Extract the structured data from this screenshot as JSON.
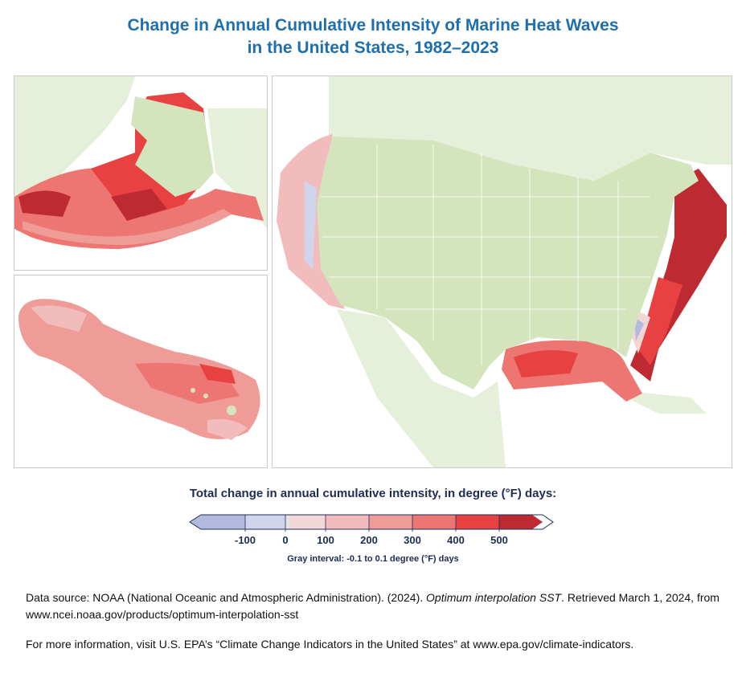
{
  "title": {
    "line1": "Change in Annual Cumulative Intensity of Marine Heat Waves",
    "line2": "in the United States, 1982–2023"
  },
  "panels": {
    "alaska": "Alaska inset map",
    "hawaii": "Hawaii inset map",
    "contiguous": "Contiguous United States map"
  },
  "colors": {
    "title": "#1f6fae",
    "us_land": "#d4e5be",
    "other_land": "#e6efd9",
    "ocean": "#ffffff"
  },
  "legend": {
    "title": "Total change in annual cumulative intensity, in degree (°F) days:",
    "ticks": [
      "-100",
      "0",
      "100",
      "200",
      "300",
      "400",
      "500"
    ],
    "bins": [
      {
        "range": "< -100",
        "color": "#b3bade"
      },
      {
        "range": "-100 to 0",
        "color": "#d0d5ec"
      },
      {
        "range": "gray",
        "color": "#e3e3e3"
      },
      {
        "range": "0 to 100",
        "color": "#f3d6d6"
      },
      {
        "range": "100 to 200",
        "color": "#f2bcbc"
      },
      {
        "range": "200 to 300",
        "color": "#ef9c99"
      },
      {
        "range": "300 to 400",
        "color": "#ed7672"
      },
      {
        "range": "400 to 500",
        "color": "#e84141"
      },
      {
        "range": "> 500",
        "color": "#be2a32"
      }
    ],
    "gray_note": "Gray interval: -0.1 to 0.1 degree (°F) days"
  },
  "source": {
    "prefix": "Data source: NOAA (National Oceanic and Atmospheric Administration). (2024). ",
    "italic": "Optimum interpolation SST",
    "suffix": ". Retrieved March 1, 2024, from www.ncei.noaa.gov/products/optimum-interpolation-sst",
    "more_info": "For more information, visit U.S. EPA’s “Climate Change Indicators in the United States” at www.epa.gov/climate-indicators."
  }
}
